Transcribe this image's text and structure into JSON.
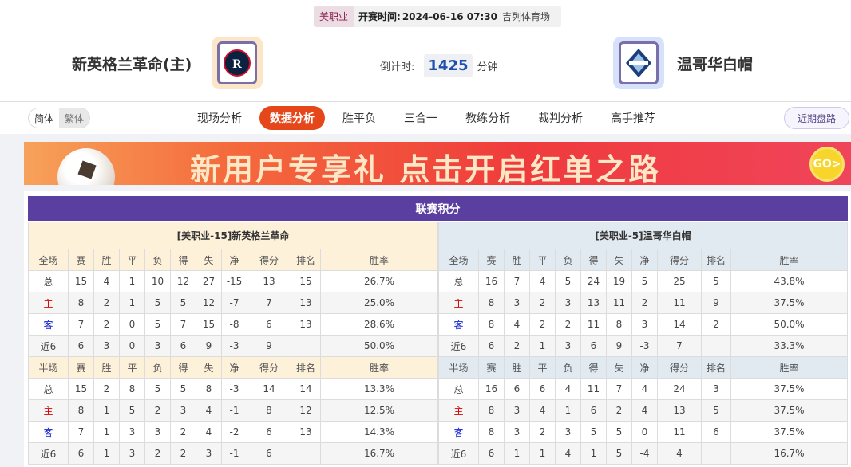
{
  "match": {
    "league": "美职业",
    "time_label": "开赛时间:",
    "time": "2024-06-16 07:30",
    "venue": "吉列体育场",
    "home": "新英格兰革命(主)",
    "away": "温哥华白帽",
    "countdown_label": "倒计时:",
    "countdown": "1425",
    "countdown_unit": "分钟"
  },
  "nav": {
    "lang": [
      "简体",
      "繁体"
    ],
    "tabs": [
      "现场分析",
      "数据分析",
      "胜平负",
      "三合一",
      "教练分析",
      "裁判分析",
      "高手推荐"
    ],
    "active": "数据分析",
    "recent": "近期盘路"
  },
  "banner": {
    "text": "新用户专享礼  点击开启红单之路",
    "go": "GO>"
  },
  "standings": {
    "title": "联赛积分",
    "columns": [
      "赛",
      "胜",
      "平",
      "负",
      "得",
      "失",
      "净",
      "得分",
      "排名",
      "胜率"
    ],
    "teams": [
      {
        "title": "[美职业-15]新英格兰革命",
        "sections": [
          {
            "label": "全场",
            "rows": [
              [
                "总",
                "15",
                "4",
                "1",
                "10",
                "12",
                "27",
                "-15",
                "13",
                "15",
                "26.7%"
              ],
              [
                "主",
                "8",
                "2",
                "1",
                "5",
                "5",
                "12",
                "-7",
                "7",
                "13",
                "25.0%"
              ],
              [
                "客",
                "7",
                "2",
                "0",
                "5",
                "7",
                "15",
                "-8",
                "6",
                "13",
                "28.6%"
              ],
              [
                "近6",
                "6",
                "3",
                "0",
                "3",
                "6",
                "9",
                "-3",
                "9",
                "",
                "50.0%"
              ]
            ]
          },
          {
            "label": "半场",
            "rows": [
              [
                "总",
                "15",
                "2",
                "8",
                "5",
                "5",
                "8",
                "-3",
                "14",
                "14",
                "13.3%"
              ],
              [
                "主",
                "8",
                "1",
                "5",
                "2",
                "3",
                "4",
                "-1",
                "8",
                "12",
                "12.5%"
              ],
              [
                "客",
                "7",
                "1",
                "3",
                "3",
                "2",
                "4",
                "-2",
                "6",
                "13",
                "14.3%"
              ],
              [
                "近6",
                "6",
                "1",
                "3",
                "2",
                "2",
                "3",
                "-1",
                "6",
                "",
                "16.7%"
              ]
            ]
          }
        ]
      },
      {
        "title": "[美职业-5]温哥华白帽",
        "sections": [
          {
            "label": "全场",
            "rows": [
              [
                "总",
                "16",
                "7",
                "4",
                "5",
                "24",
                "19",
                "5",
                "25",
                "5",
                "43.8%"
              ],
              [
                "主",
                "8",
                "3",
                "2",
                "3",
                "13",
                "11",
                "2",
                "11",
                "9",
                "37.5%"
              ],
              [
                "客",
                "8",
                "4",
                "2",
                "2",
                "11",
                "8",
                "3",
                "14",
                "2",
                "50.0%"
              ],
              [
                "近6",
                "6",
                "2",
                "1",
                "3",
                "6",
                "9",
                "-3",
                "7",
                "",
                "33.3%"
              ]
            ]
          },
          {
            "label": "半场",
            "rows": [
              [
                "总",
                "16",
                "6",
                "6",
                "4",
                "11",
                "7",
                "4",
                "24",
                "3",
                "37.5%"
              ],
              [
                "主",
                "8",
                "3",
                "4",
                "1",
                "6",
                "2",
                "4",
                "13",
                "5",
                "37.5%"
              ],
              [
                "客",
                "8",
                "3",
                "2",
                "3",
                "5",
                "5",
                "0",
                "11",
                "6",
                "37.5%"
              ],
              [
                "近6",
                "6",
                "1",
                "1",
                "4",
                "1",
                "5",
                "-4",
                "4",
                "",
                "16.7%"
              ]
            ]
          }
        ]
      }
    ]
  }
}
